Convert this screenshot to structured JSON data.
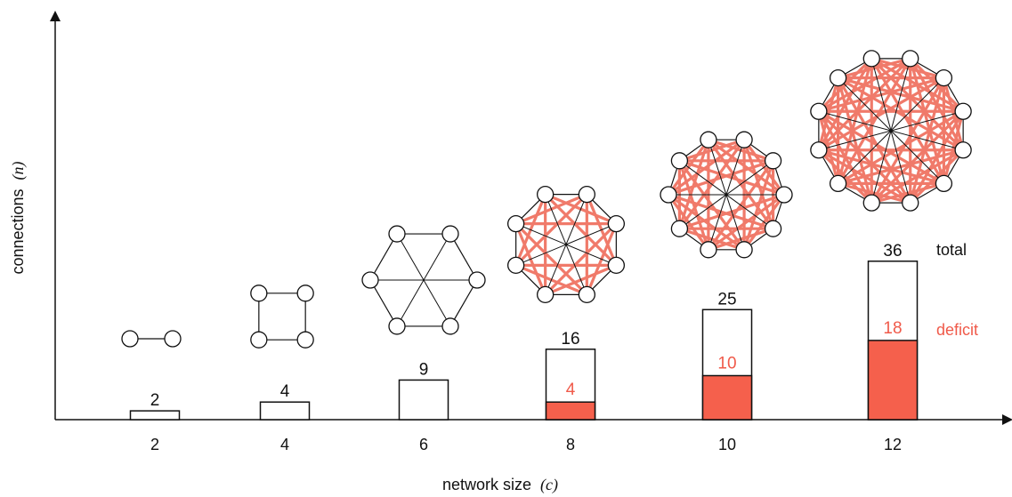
{
  "colors": {
    "deficit": "#f5604c",
    "deficit_text": "#f05a4a",
    "edge_red": "#f07a6a",
    "outline": "#111111"
  },
  "chart_data": {
    "type": "bar",
    "xlabel": "network size",
    "xlabel_var": "(c)",
    "ylabel": "connections",
    "ylabel_var": "(n)",
    "categories": [
      "2",
      "4",
      "6",
      "8",
      "10",
      "12"
    ],
    "series": [
      {
        "name": "total",
        "values": [
          2,
          4,
          9,
          16,
          25,
          36
        ]
      },
      {
        "name": "deficit",
        "values": [
          0,
          0,
          0,
          4,
          10,
          18
        ]
      }
    ],
    "deficit_labels": [
      "",
      "",
      "",
      "4",
      "10",
      "18"
    ],
    "legend": {
      "total": "total",
      "deficit": "deficit",
      "placement": "right"
    },
    "network_icons": [
      {
        "nodes": 2,
        "style": "line"
      },
      {
        "nodes": 4,
        "style": "ring"
      },
      {
        "nodes": 6,
        "style": "ring-diameters"
      },
      {
        "nodes": 8,
        "style": "ring-diameters-red-chords"
      },
      {
        "nodes": 10,
        "style": "ring-diameters-red-chords"
      },
      {
        "nodes": 12,
        "style": "ring-diameters-red-chords"
      }
    ],
    "grid": false
  }
}
